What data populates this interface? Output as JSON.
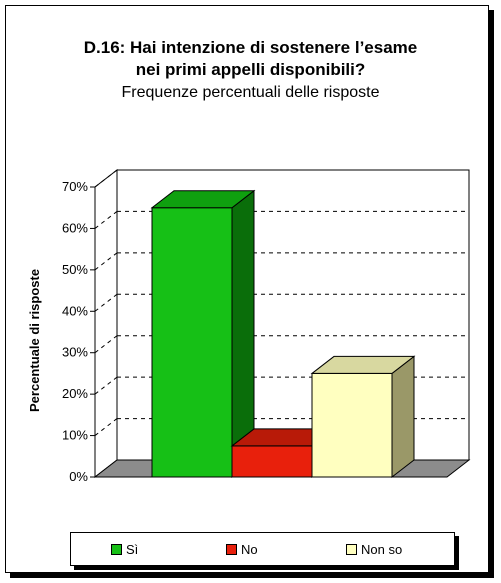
{
  "title": {
    "line1": "D.16: Hai intenzione di sostenere l’esame",
    "line2": "nei primi appelli disponibili?",
    "subtitle": "Frequenze percentuali delle risposte"
  },
  "chart_data": {
    "type": "bar",
    "style": "3d",
    "categories": [
      "Sì",
      "No",
      "Non so"
    ],
    "values": [
      65,
      7.5,
      25
    ],
    "ylabel": "Percentuale di risposte",
    "ylim": [
      0,
      70
    ],
    "yticks": [
      "0%",
      "10%",
      "20%",
      "30%",
      "40%",
      "50%",
      "60%",
      "70%"
    ],
    "grid": "dashed",
    "legend_position": "bottom",
    "colors": {
      "Sì": "#16c016",
      "No": "#e8200c",
      "Non so": "#ffffc0"
    }
  },
  "legend": {
    "items": [
      {
        "label": "Sì",
        "color": "#16c016"
      },
      {
        "label": "No",
        "color": "#e8200c"
      },
      {
        "label": "Non so",
        "color": "#ffffc0"
      }
    ]
  }
}
